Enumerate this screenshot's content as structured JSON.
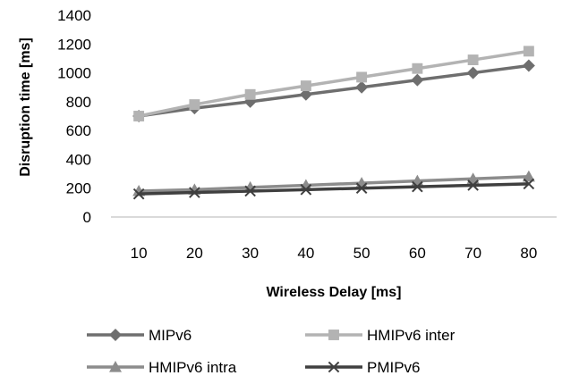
{
  "chart_data": {
    "type": "line",
    "xlabel": "Wireless Delay [ms]",
    "ylabel": "Disruption time [ms]",
    "x": [
      10,
      20,
      30,
      40,
      50,
      60,
      70,
      80
    ],
    "ylim": [
      0,
      1400
    ],
    "yticks": [
      0,
      200,
      400,
      600,
      800,
      1000,
      1200,
      1400
    ],
    "grid": false,
    "legend_position": "bottom",
    "series": [
      {
        "name": "MIPv6",
        "marker": "diamond",
        "color": "#6e6e6e",
        "values": [
          700,
          755,
          800,
          850,
          900,
          950,
          1000,
          1050
        ]
      },
      {
        "name": "HMIPv6 inter",
        "marker": "square",
        "color": "#b3b3b3",
        "values": [
          700,
          780,
          850,
          910,
          970,
          1030,
          1090,
          1150
        ]
      },
      {
        "name": "HMIPv6 intra",
        "marker": "triangle",
        "color": "#8c8c8c",
        "values": [
          180,
          190,
          205,
          220,
          235,
          250,
          265,
          280
        ]
      },
      {
        "name": "PMIPv6",
        "marker": "x",
        "color": "#3f3f3f",
        "values": [
          160,
          170,
          180,
          190,
          200,
          210,
          220,
          230
        ]
      }
    ]
  }
}
